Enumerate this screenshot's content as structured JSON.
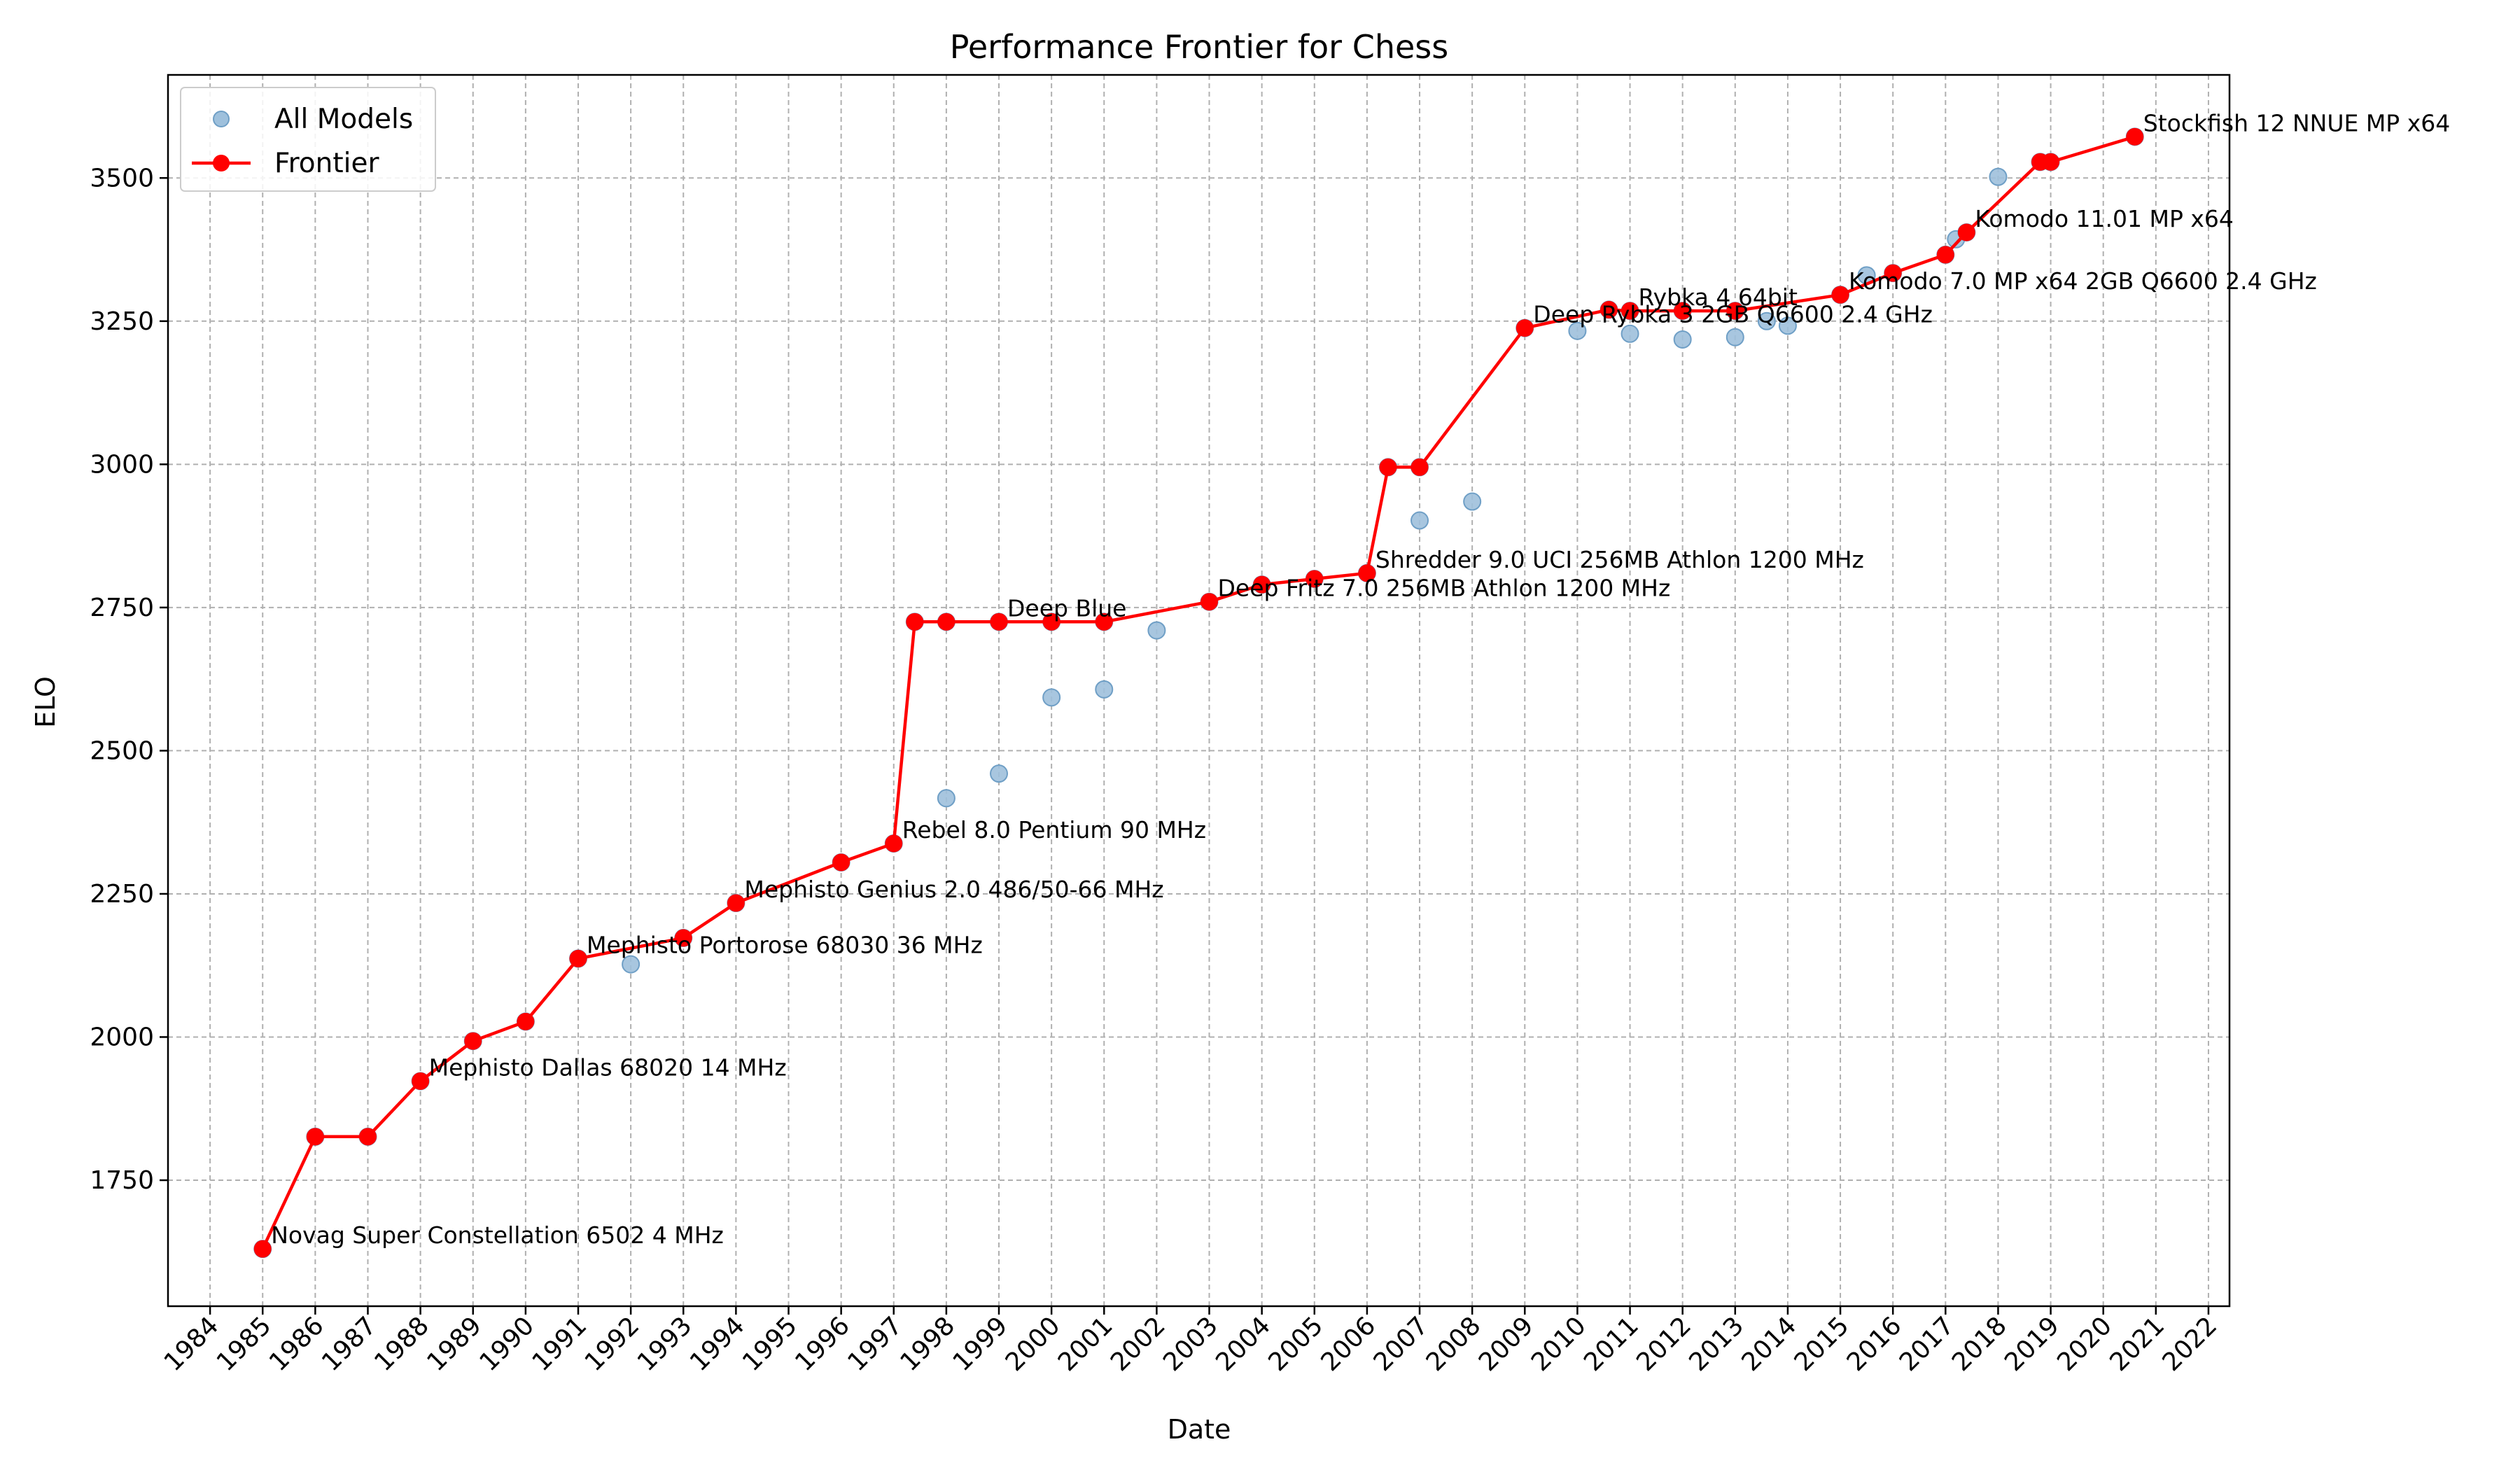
{
  "chart_data": {
    "type": "scatter",
    "title": "Performance Frontier for Chess",
    "xlabel": "Date",
    "ylabel": "ELO",
    "xlim": [
      1983.2,
      2022.4
    ],
    "ylim": [
      1530,
      3680
    ],
    "x_ticks": [
      "1984",
      "1985",
      "1986",
      "1987",
      "1988",
      "1989",
      "1990",
      "1991",
      "1992",
      "1993",
      "1994",
      "1995",
      "1996",
      "1997",
      "1998",
      "1999",
      "2000",
      "2001",
      "2002",
      "2003",
      "2004",
      "2005",
      "2006",
      "2007",
      "2008",
      "2009",
      "2010",
      "2011",
      "2012",
      "2013",
      "2014",
      "2015",
      "2016",
      "2017",
      "2018",
      "2019",
      "2020",
      "2021",
      "2022"
    ],
    "y_ticks": [
      1750,
      2000,
      2250,
      2500,
      2750,
      3000,
      3250,
      3500
    ],
    "grid": true,
    "legend_position": "top-left",
    "series": [
      {
        "name": "All Models",
        "kind": "scatter",
        "color": "#9ec0dc",
        "edge_color": "#6f9fc6",
        "points": [
          {
            "x": 1985.0,
            "y": 1630
          },
          {
            "x": 1986.0,
            "y": 1826
          },
          {
            "x": 1987.0,
            "y": 1826
          },
          {
            "x": 1988.0,
            "y": 1923
          },
          {
            "x": 1989.0,
            "y": 1993
          },
          {
            "x": 1990.0,
            "y": 2027
          },
          {
            "x": 1991.0,
            "y": 2137
          },
          {
            "x": 1992.0,
            "y": 2127
          },
          {
            "x": 1993.0,
            "y": 2173
          },
          {
            "x": 1994.0,
            "y": 2234
          },
          {
            "x": 1996.0,
            "y": 2305
          },
          {
            "x": 1997.0,
            "y": 2338
          },
          {
            "x": 1997.4,
            "y": 2725
          },
          {
            "x": 1998.0,
            "y": 2417
          },
          {
            "x": 1998.0,
            "y": 2725
          },
          {
            "x": 1999.0,
            "y": 2460
          },
          {
            "x": 1999.0,
            "y": 2725
          },
          {
            "x": 2000.0,
            "y": 2593
          },
          {
            "x": 2000.0,
            "y": 2725
          },
          {
            "x": 2001.0,
            "y": 2607
          },
          {
            "x": 2001.0,
            "y": 2725
          },
          {
            "x": 2002.0,
            "y": 2710
          },
          {
            "x": 2003.0,
            "y": 2760
          },
          {
            "x": 2004.0,
            "y": 2790
          },
          {
            "x": 2005.0,
            "y": 2800
          },
          {
            "x": 2006.0,
            "y": 2810
          },
          {
            "x": 2006.4,
            "y": 2995
          },
          {
            "x": 2007.0,
            "y": 2995
          },
          {
            "x": 2007.0,
            "y": 2902
          },
          {
            "x": 2008.0,
            "y": 2935
          },
          {
            "x": 2009.0,
            "y": 3238
          },
          {
            "x": 2010.0,
            "y": 3233
          },
          {
            "x": 2010.6,
            "y": 3270
          },
          {
            "x": 2011.0,
            "y": 3228
          },
          {
            "x": 2011.0,
            "y": 3268
          },
          {
            "x": 2012.0,
            "y": 3218
          },
          {
            "x": 2012.0,
            "y": 3268
          },
          {
            "x": 2013.0,
            "y": 3222
          },
          {
            "x": 2013.0,
            "y": 3268
          },
          {
            "x": 2013.6,
            "y": 3250
          },
          {
            "x": 2014.0,
            "y": 3242
          },
          {
            "x": 2015.0,
            "y": 3296
          },
          {
            "x": 2015.5,
            "y": 3330
          },
          {
            "x": 2016.0,
            "y": 3334
          },
          {
            "x": 2017.0,
            "y": 3366
          },
          {
            "x": 2017.2,
            "y": 3393
          },
          {
            "x": 2017.4,
            "y": 3405
          },
          {
            "x": 2018.0,
            "y": 3502
          },
          {
            "x": 2018.8,
            "y": 3528
          },
          {
            "x": 2019.0,
            "y": 3528
          },
          {
            "x": 2020.6,
            "y": 3572
          }
        ]
      },
      {
        "name": "Frontier",
        "kind": "line",
        "color": "#ff0000",
        "points": [
          {
            "x": 1985.0,
            "y": 1630
          },
          {
            "x": 1986.0,
            "y": 1826
          },
          {
            "x": 1987.0,
            "y": 1826
          },
          {
            "x": 1988.0,
            "y": 1923
          },
          {
            "x": 1989.0,
            "y": 1993
          },
          {
            "x": 1990.0,
            "y": 2027
          },
          {
            "x": 1991.0,
            "y": 2137
          },
          {
            "x": 1993.0,
            "y": 2173
          },
          {
            "x": 1994.0,
            "y": 2234
          },
          {
            "x": 1996.0,
            "y": 2305
          },
          {
            "x": 1997.0,
            "y": 2338
          },
          {
            "x": 1997.4,
            "y": 2725
          },
          {
            "x": 1998.0,
            "y": 2725
          },
          {
            "x": 1999.0,
            "y": 2725
          },
          {
            "x": 2000.0,
            "y": 2725
          },
          {
            "x": 2001.0,
            "y": 2725
          },
          {
            "x": 2003.0,
            "y": 2760
          },
          {
            "x": 2004.0,
            "y": 2790
          },
          {
            "x": 2005.0,
            "y": 2800
          },
          {
            "x": 2006.0,
            "y": 2810
          },
          {
            "x": 2006.4,
            "y": 2995
          },
          {
            "x": 2007.0,
            "y": 2995
          },
          {
            "x": 2009.0,
            "y": 3238
          },
          {
            "x": 2010.6,
            "y": 3270
          },
          {
            "x": 2011.0,
            "y": 3268
          },
          {
            "x": 2012.0,
            "y": 3268
          },
          {
            "x": 2013.0,
            "y": 3268
          },
          {
            "x": 2015.0,
            "y": 3296
          },
          {
            "x": 2016.0,
            "y": 3334
          },
          {
            "x": 2017.0,
            "y": 3366
          },
          {
            "x": 2017.4,
            "y": 3405
          },
          {
            "x": 2018.8,
            "y": 3528
          },
          {
            "x": 2019.0,
            "y": 3528
          },
          {
            "x": 2020.6,
            "y": 3572
          }
        ]
      }
    ],
    "annotations": [
      {
        "text": "Novag Super Constellation 6502 4 MHz",
        "x": 1985.0,
        "y": 1630
      },
      {
        "text": "Mephisto Dallas 68020 14 MHz",
        "x": 1988.0,
        "y": 1923
      },
      {
        "text": "Mephisto Portorose 68030 36 MHz",
        "x": 1991.0,
        "y": 2137
      },
      {
        "text": "Mephisto Genius 2.0 486/50-66 MHz",
        "x": 1994.0,
        "y": 2234
      },
      {
        "text": "Rebel 8.0 Pentium 90 MHz",
        "x": 1997.0,
        "y": 2338
      },
      {
        "text": "Deep Blue",
        "x": 1999.0,
        "y": 2725
      },
      {
        "text": "Deep Fritz 7.0 256MB Athlon 1200 MHz",
        "x": 2003.0,
        "y": 2760
      },
      {
        "text": "Shredder 9.0 UCI 256MB Athlon 1200 MHz",
        "x": 2006.0,
        "y": 2810
      },
      {
        "text": "Deep Rybka 3 2GB Q6600 2.4 GHz",
        "x": 2009.0,
        "y": 3238
      },
      {
        "text": "Rybka 4 64bit",
        "x": 2011.0,
        "y": 3268
      },
      {
        "text": "Komodo 7.0 MP x64 2GB Q6600 2.4 GHz",
        "x": 2015.0,
        "y": 3296
      },
      {
        "text": "Komodo 11.01 MP x64",
        "x": 2017.4,
        "y": 3405
      },
      {
        "text": "Stockfish 12 NNUE MP x64",
        "x": 2020.6,
        "y": 3572
      }
    ]
  }
}
